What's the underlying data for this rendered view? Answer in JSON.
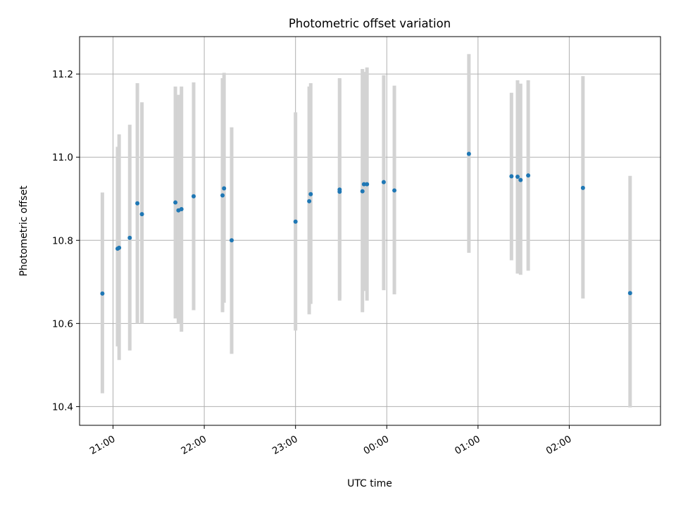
{
  "chart_data": {
    "type": "scatter",
    "title": "Photometric offset variation",
    "xlabel": "UTC time",
    "ylabel": "Photometric offset",
    "x_is_time": true,
    "xlim": [
      "20:38",
      "27:00"
    ],
    "ylim": [
      10.355,
      11.29
    ],
    "yticks": [
      10.4,
      10.6,
      10.8,
      11.0,
      11.2
    ],
    "ytick_labels": [
      "10.4",
      "10.6",
      "10.8",
      "11.0",
      "11.2"
    ],
    "xticks": [
      "21:00",
      "22:00",
      "23:00",
      "00:00",
      "01:00",
      "02:00"
    ],
    "grid": true,
    "colors": {
      "points": "#1f77b4",
      "errorbars": "#d3d3d3",
      "grid": "#b0b0b0"
    },
    "points": [
      {
        "x": "20:53",
        "y": 10.672,
        "ylow": 10.432,
        "yhigh": 10.915
      },
      {
        "x": "21:03",
        "y": 10.78,
        "ylow": 10.545,
        "yhigh": 11.025
      },
      {
        "x": "21:04",
        "y": 10.782,
        "ylow": 10.512,
        "yhigh": 11.055
      },
      {
        "x": "21:11",
        "y": 10.806,
        "ylow": 10.535,
        "yhigh": 11.078
      },
      {
        "x": "21:16",
        "y": 10.889,
        "ylow": 10.6,
        "yhigh": 11.178
      },
      {
        "x": "21:19",
        "y": 10.863,
        "ylow": 10.6,
        "yhigh": 11.132
      },
      {
        "x": "21:41",
        "y": 10.891,
        "ylow": 10.612,
        "yhigh": 11.17
      },
      {
        "x": "21:43",
        "y": 10.872,
        "ylow": 10.6,
        "yhigh": 11.15
      },
      {
        "x": "21:45",
        "y": 10.875,
        "ylow": 10.58,
        "yhigh": 11.17
      },
      {
        "x": "21:53",
        "y": 10.906,
        "ylow": 10.632,
        "yhigh": 11.18
      },
      {
        "x": "22:12",
        "y": 10.908,
        "ylow": 10.627,
        "yhigh": 11.19
      },
      {
        "x": "22:13",
        "y": 10.925,
        "ylow": 10.65,
        "yhigh": 11.203
      },
      {
        "x": "22:18",
        "y": 10.8,
        "ylow": 10.527,
        "yhigh": 11.072
      },
      {
        "x": "23:00",
        "y": 10.845,
        "ylow": 10.583,
        "yhigh": 11.108
      },
      {
        "x": "23:09",
        "y": 10.894,
        "ylow": 10.622,
        "yhigh": 11.17
      },
      {
        "x": "23:10",
        "y": 10.911,
        "ylow": 10.647,
        "yhigh": 11.178
      },
      {
        "x": "23:29",
        "y": 10.917,
        "ylow": 10.655,
        "yhigh": 11.188
      },
      {
        "x": "23:29",
        "y": 10.922,
        "ylow": 10.66,
        "yhigh": 11.19
      },
      {
        "x": "23:44",
        "y": 10.918,
        "ylow": 10.627,
        "yhigh": 11.212
      },
      {
        "x": "23:45",
        "y": 10.935,
        "ylow": 10.678,
        "yhigh": 11.205
      },
      {
        "x": "23:47",
        "y": 10.935,
        "ylow": 10.655,
        "yhigh": 11.216
      },
      {
        "x": "23:58",
        "y": 10.94,
        "ylow": 10.68,
        "yhigh": 11.197
      },
      {
        "x": "24:05",
        "y": 10.92,
        "ylow": 10.67,
        "yhigh": 11.172
      },
      {
        "x": "24:54",
        "y": 11.008,
        "ylow": 10.77,
        "yhigh": 11.248
      },
      {
        "x": "25:22",
        "y": 10.954,
        "ylow": 10.752,
        "yhigh": 11.155
      },
      {
        "x": "25:26",
        "y": 10.953,
        "ylow": 10.72,
        "yhigh": 11.185
      },
      {
        "x": "25:28",
        "y": 10.945,
        "ylow": 10.717,
        "yhigh": 11.177
      },
      {
        "x": "25:33",
        "y": 10.956,
        "ylow": 10.727,
        "yhigh": 11.185
      },
      {
        "x": "26:09",
        "y": 10.926,
        "ylow": 10.66,
        "yhigh": 11.195
      },
      {
        "x": "26:40",
        "y": 10.673,
        "ylow": 10.398,
        "yhigh": 10.955
      }
    ]
  }
}
